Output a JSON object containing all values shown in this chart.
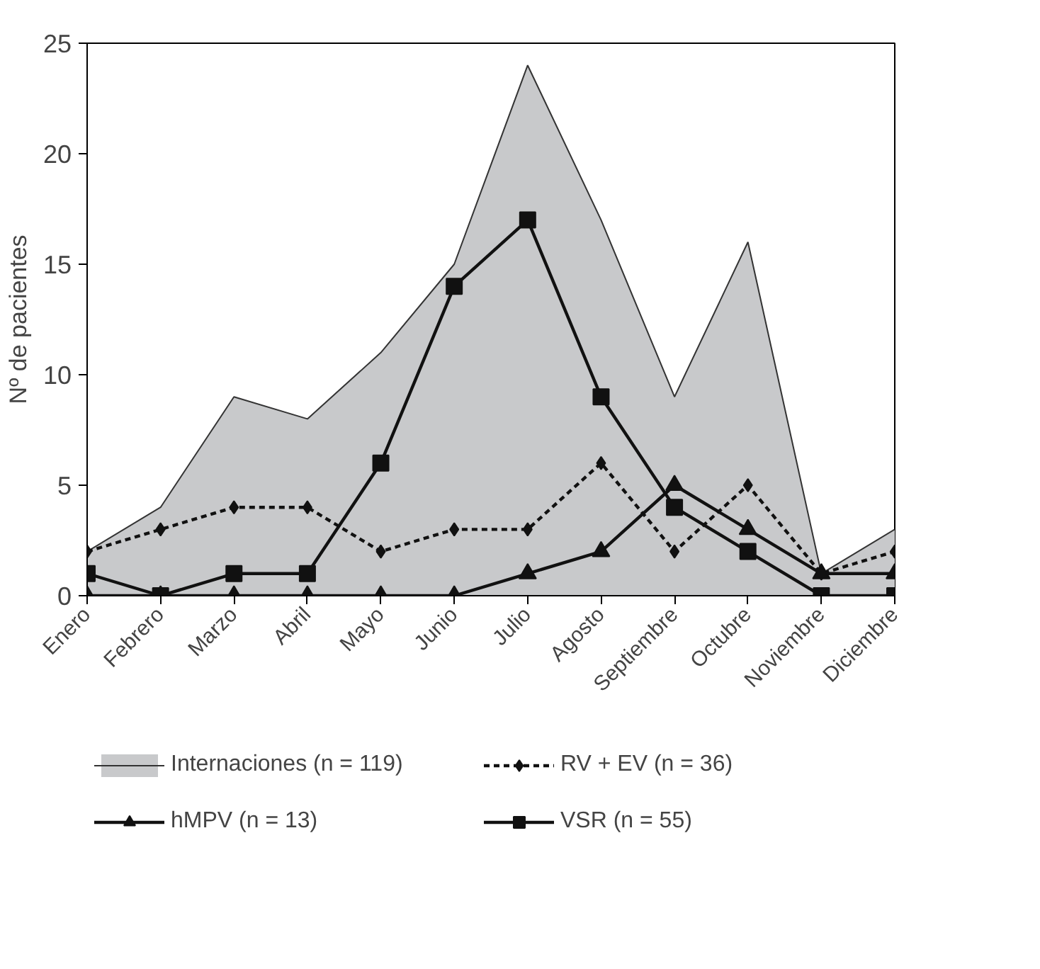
{
  "chart_data": {
    "type": "line",
    "ylabel": "Nº de pacientes",
    "categories": [
      "Enero",
      "Febrero",
      "Marzo",
      "Abril",
      "Mayo",
      "Junio",
      "Julio",
      "Agosto",
      "Septiembre",
      "Octubre",
      "Noviembre",
      "Diciembre"
    ],
    "ylim": [
      0,
      25
    ],
    "yticks": [
      0,
      5,
      10,
      15,
      20,
      25
    ],
    "grid": false,
    "legend": "bottom",
    "series": [
      {
        "name": "Internaciones (n = 119)",
        "type": "area",
        "color": "#c8c9cb",
        "values": [
          2,
          4,
          9,
          8,
          11,
          15,
          24,
          17,
          9,
          16,
          1,
          3
        ]
      },
      {
        "name": "RV + EV (n = 36)",
        "color": "#111111",
        "line_style": "dashed",
        "marker": "diamond",
        "values": [
          2,
          3,
          4,
          4,
          2,
          3,
          3,
          6,
          2,
          5,
          1,
          2
        ]
      },
      {
        "name": "hMPV (n = 13)",
        "color": "#111111",
        "line_style": "solid",
        "marker": "triangle",
        "values": [
          0,
          0,
          0,
          0,
          0,
          0,
          1,
          2,
          5,
          3,
          1,
          1
        ]
      },
      {
        "name": "VSR (n = 55)",
        "color": "#111111",
        "line_style": "solid",
        "marker": "square",
        "values": [
          1,
          0,
          1,
          1,
          6,
          14,
          17,
          9,
          4,
          2,
          0,
          0
        ]
      }
    ]
  }
}
